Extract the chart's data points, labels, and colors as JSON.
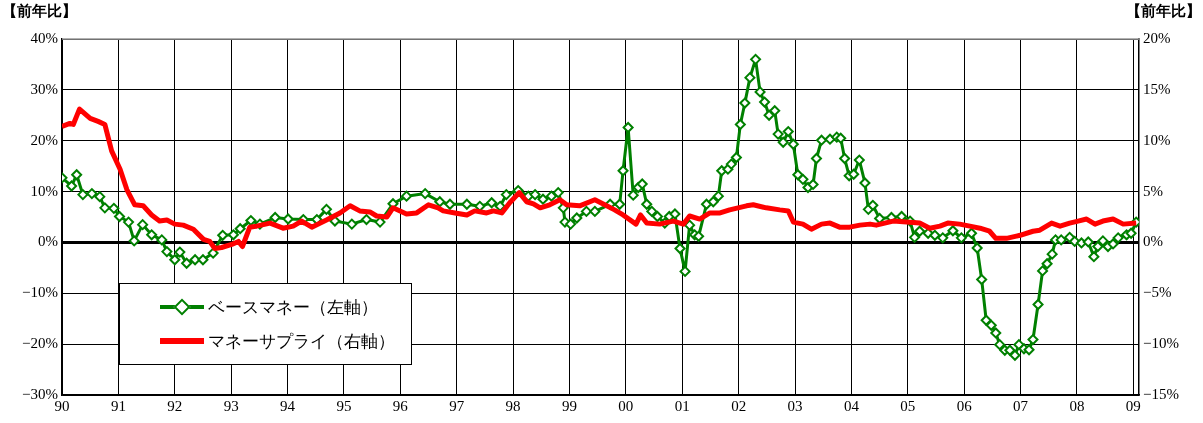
{
  "chart_data": {
    "type": "line",
    "ylabel": "【前年比】",
    "y2label": "【前年比】",
    "xlim": [
      1990,
      2009.1
    ],
    "xticks": [
      {
        "value": 1990,
        "label": "90"
      },
      {
        "value": 1991,
        "label": "91"
      },
      {
        "value": 1992,
        "label": "92"
      },
      {
        "value": 1993,
        "label": "93"
      },
      {
        "value": 1994,
        "label": "94"
      },
      {
        "value": 1995,
        "label": "95"
      },
      {
        "value": 1996,
        "label": "96"
      },
      {
        "value": 1997,
        "label": "97"
      },
      {
        "value": 1998,
        "label": "98"
      },
      {
        "value": 1999,
        "label": "99"
      },
      {
        "value": 2000,
        "label": "00"
      },
      {
        "value": 2001,
        "label": "01"
      },
      {
        "value": 2002,
        "label": "02"
      },
      {
        "value": 2003,
        "label": "03"
      },
      {
        "value": 2004,
        "label": "04"
      },
      {
        "value": 2005,
        "label": "05"
      },
      {
        "value": 2006,
        "label": "06"
      },
      {
        "value": 2007,
        "label": "07"
      },
      {
        "value": 2008,
        "label": "08"
      },
      {
        "value": 2009,
        "label": "09"
      }
    ],
    "ylim": [
      -30,
      40
    ],
    "yticks": [
      {
        "value": -30,
        "label": "−30%"
      },
      {
        "value": -20,
        "label": "−20%"
      },
      {
        "value": -10,
        "label": "−10%"
      },
      {
        "value": 0,
        "label": "0%"
      },
      {
        "value": 10,
        "label": "10%"
      },
      {
        "value": 20,
        "label": "20%"
      },
      {
        "value": 30,
        "label": "30%"
      },
      {
        "value": 40,
        "label": "40%"
      }
    ],
    "y2lim": [
      -15,
      20
    ],
    "y2ticks": [
      {
        "value": -15,
        "label": "−15%"
      },
      {
        "value": -10,
        "label": "−10%"
      },
      {
        "value": -5,
        "label": "−5%"
      },
      {
        "value": 0,
        "label": "0%"
      },
      {
        "value": 5,
        "label": "5%"
      },
      {
        "value": 10,
        "label": "10%"
      },
      {
        "value": 15,
        "label": "15%"
      },
      {
        "value": 20,
        "label": "20%"
      }
    ],
    "grid": true,
    "legend": "bottom left",
    "ref_lines": [
      {
        "axis": "y",
        "value": 0,
        "color": "#000000"
      }
    ],
    "series": [
      {
        "name": "ベースマネー（左軸）",
        "color": "#008000",
        "marker": "diamond",
        "axis": "y",
        "x": [
          1990.0,
          1990.17,
          1990.26,
          1990.37,
          1990.53,
          1990.67,
          1990.76,
          1990.92,
          1991.02,
          1991.18,
          1991.28,
          1991.43,
          1991.59,
          1991.77,
          1991.86,
          1992.0,
          1992.09,
          1992.21,
          1992.36,
          1992.5,
          1992.68,
          1992.85,
          1993.04,
          1993.16,
          1993.35,
          1993.51,
          1993.78,
          1994.01,
          1994.28,
          1994.52,
          1994.69,
          1994.84,
          1995.14,
          1995.4,
          1995.64,
          1995.87,
          1996.11,
          1996.44,
          1996.7,
          1996.88,
          1997.18,
          1997.41,
          1997.62,
          1997.77,
          1997.88,
          1998.09,
          1998.27,
          1998.39,
          1998.53,
          1998.68,
          1998.8,
          1998.89,
          1998.92,
          1999.02,
          1999.13,
          1999.3,
          1999.45,
          1999.72,
          1999.89,
          1999.95,
          2000.04,
          2000.13,
          2000.22,
          2000.29,
          2000.37,
          2000.46,
          2000.56,
          2000.69,
          2000.77,
          2000.87,
          2000.96,
          2001.05,
          2001.13,
          2001.22,
          2001.29,
          2001.43,
          2001.55,
          2001.64,
          2001.7,
          2001.81,
          2001.87,
          2001.96,
          2002.03,
          2002.11,
          2002.2,
          2002.3,
          2002.38,
          2002.46,
          2002.54,
          2002.64,
          2002.7,
          2002.79,
          2002.88,
          2002.97,
          2003.05,
          2003.14,
          2003.23,
          2003.32,
          2003.38,
          2003.47,
          2003.62,
          2003.74,
          2003.81,
          2003.88,
          2003.96,
          2004.04,
          2004.14,
          2004.24,
          2004.3,
          2004.38,
          2004.5,
          2004.71,
          2004.89,
          2005.04,
          2005.12,
          2005.21,
          2005.36,
          2005.48,
          2005.62,
          2005.8,
          2005.95,
          2006.13,
          2006.23,
          2006.31,
          2006.39,
          2006.48,
          2006.56,
          2006.63,
          2006.72,
          2006.81,
          2006.9,
          2006.97,
          2007.06,
          2007.15,
          2007.22,
          2007.31,
          2007.39,
          2007.47,
          2007.56,
          2007.62,
          2007.72,
          2007.87,
          2007.96,
          2008.08,
          2008.2,
          2008.3,
          2008.37,
          2008.46,
          2008.55,
          2008.64,
          2008.73,
          2008.88,
          2008.96,
          2009.05
        ],
        "values": [
          12.7,
          11.1,
          13.3,
          9.4,
          9.6,
          9.0,
          6.8,
          6.7,
          5.1,
          4.0,
          0.3,
          3.5,
          1.5,
          0.5,
          -1.8,
          -3.4,
          -1.9,
          -4.1,
          -3.4,
          -3.4,
          -2.1,
          1.4,
          1.5,
          2.7,
          4.3,
          3.6,
          4.9,
          4.6,
          4.5,
          4.5,
          6.5,
          4.2,
          3.6,
          4.5,
          4.0,
          7.6,
          9.1,
          9.6,
          8.0,
          7.5,
          7.5,
          7.1,
          7.8,
          7.1,
          9.4,
          10.2,
          9.1,
          9.4,
          8.5,
          9.1,
          9.8,
          6.8,
          4.0,
          3.6,
          4.8,
          6.1,
          6.1,
          7.5,
          7.5,
          14.1,
          22.6,
          9.3,
          10.8,
          11.5,
          7.5,
          6.1,
          5.1,
          3.8,
          5.1,
          5.6,
          -1.2,
          -5.7,
          3.4,
          1.5,
          1.2,
          7.5,
          8.0,
          9.1,
          14.1,
          14.4,
          15.4,
          16.7,
          23.2,
          27.4,
          32.4,
          36.0,
          29.6,
          27.6,
          25.0,
          25.9,
          21.3,
          19.7,
          21.8,
          19.3,
          13.3,
          12.4,
          10.8,
          11.4,
          16.5,
          20.1,
          20.3,
          20.7,
          20.5,
          16.5,
          13.1,
          13.4,
          16.2,
          11.7,
          6.5,
          7.3,
          4.7,
          4.9,
          5.1,
          4.2,
          1.0,
          2.2,
          1.8,
          1.4,
          0.9,
          2.3,
          0.9,
          1.8,
          -1.1,
          -7.3,
          -15.3,
          -16.3,
          -17.8,
          -20.1,
          -21.2,
          -21.2,
          -22.2,
          -20.1,
          -20.9,
          -21.1,
          -19.1,
          -12.2,
          -5.6,
          -4.2,
          -2.3,
          0.5,
          0.5,
          1.0,
          0.2,
          -0.1,
          0.1,
          -2.8,
          -0.8,
          0.3,
          -0.8,
          -0.3,
          0.9,
          1.5,
          1.8,
          4.0
        ]
      },
      {
        "name": "マネーサプライ（右軸）",
        "color": "#ff0000",
        "marker": "none",
        "axis": "y2",
        "x": [
          1990.0,
          1990.14,
          1990.2,
          1990.31,
          1990.5,
          1990.64,
          1990.76,
          1990.88,
          1991.03,
          1991.15,
          1991.29,
          1991.44,
          1991.59,
          1991.73,
          1991.86,
          1992.0,
          1992.15,
          1992.33,
          1992.51,
          1992.62,
          1992.71,
          1992.83,
          1993.01,
          1993.13,
          1993.2,
          1993.33,
          1993.45,
          1993.69,
          1993.92,
          1994.1,
          1994.25,
          1994.43,
          1994.69,
          1994.93,
          1995.11,
          1995.28,
          1995.46,
          1995.58,
          1995.76,
          1995.87,
          1996.11,
          1996.29,
          1996.5,
          1996.67,
          1996.76,
          1996.97,
          1997.18,
          1997.32,
          1997.53,
          1997.65,
          1997.8,
          1997.94,
          1998.11,
          1998.24,
          1998.36,
          1998.48,
          1998.65,
          1998.83,
          1998.95,
          1999.18,
          1999.45,
          1999.66,
          1999.8,
          1999.95,
          2000.18,
          2000.26,
          2000.37,
          2000.6,
          2000.84,
          2001.02,
          2001.13,
          2001.31,
          2001.49,
          2001.67,
          2001.84,
          2002.14,
          2002.26,
          2002.49,
          2002.73,
          2002.88,
          2002.97,
          2003.14,
          2003.29,
          2003.47,
          2003.62,
          2003.79,
          2003.97,
          2004.15,
          2004.33,
          2004.44,
          2004.74,
          2004.98,
          2005.21,
          2005.39,
          2005.57,
          2005.71,
          2005.92,
          2006.1,
          2006.28,
          2006.45,
          2006.56,
          2006.75,
          2006.99,
          2007.22,
          2007.34,
          2007.55,
          2007.7,
          2007.87,
          2008.02,
          2008.17,
          2008.32,
          2008.46,
          2008.64,
          2008.82,
          2009.05
        ],
        "values": [
          11.4,
          11.7,
          11.6,
          13.1,
          12.2,
          11.9,
          11.6,
          9.0,
          7.2,
          5.2,
          3.7,
          3.6,
          2.7,
          2.1,
          2.2,
          1.8,
          1.7,
          1.3,
          0.3,
          0.1,
          -0.6,
          -0.5,
          -0.2,
          0.1,
          -0.4,
          1.5,
          1.6,
          1.9,
          1.4,
          1.6,
          2.1,
          1.5,
          2.2,
          2.9,
          3.6,
          3.1,
          3.0,
          2.6,
          2.5,
          3.4,
          2.8,
          2.9,
          3.7,
          3.4,
          3.1,
          2.9,
          2.7,
          3.1,
          2.9,
          3.1,
          2.9,
          3.9,
          4.9,
          4.0,
          3.8,
          3.4,
          3.7,
          4.2,
          3.7,
          3.6,
          4.2,
          3.6,
          3.2,
          2.7,
          1.8,
          2.7,
          1.9,
          1.8,
          2.1,
          1.8,
          2.6,
          2.3,
          2.9,
          2.9,
          3.2,
          3.6,
          3.7,
          3.4,
          3.2,
          3.1,
          2.0,
          1.8,
          1.3,
          1.8,
          1.9,
          1.5,
          1.5,
          1.7,
          1.8,
          1.7,
          2.1,
          2.0,
          1.9,
          1.4,
          1.6,
          1.9,
          1.8,
          1.6,
          1.4,
          1.1,
          0.4,
          0.4,
          0.7,
          1.1,
          1.2,
          1.9,
          1.6,
          1.9,
          2.1,
          2.3,
          1.8,
          2.1,
          2.3,
          1.8,
          1.9
        ]
      }
    ]
  }
}
